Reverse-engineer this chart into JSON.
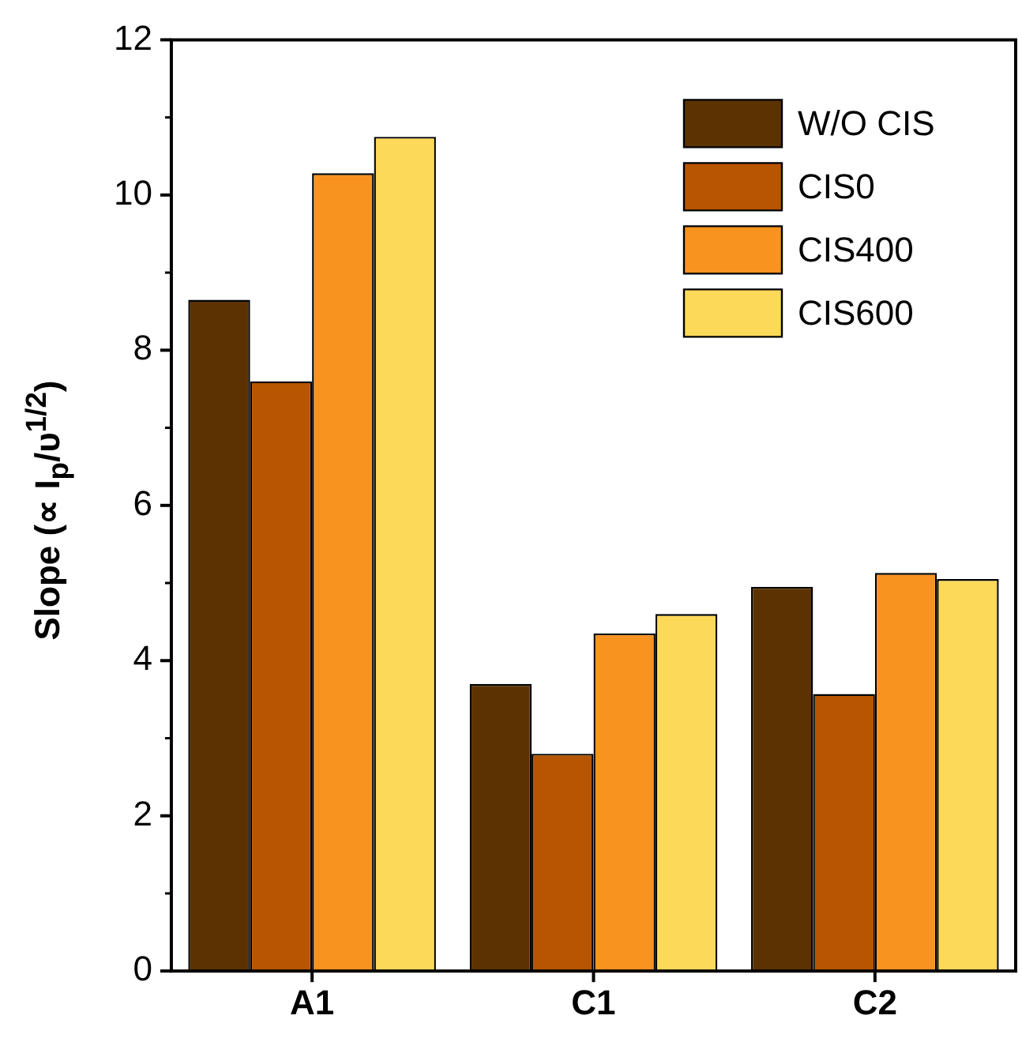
{
  "chart_data": {
    "type": "bar",
    "ylabel": "Slope (∝ I$_{p}$/υ$^{1/2}$)",
    "categories": [
      "A1",
      "C1",
      "C2"
    ],
    "series": [
      {
        "name": "W/O CIS",
        "color": "#5c3300",
        "values": [
          8.65,
          3.7,
          4.95
        ]
      },
      {
        "name": "CIS0",
        "color": "#b85500",
        "values": [
          7.6,
          2.8,
          3.57
        ]
      },
      {
        "name": "CIS400",
        "color": "#f7931e",
        "values": [
          10.28,
          4.35,
          5.13
        ]
      },
      {
        "name": "CIS600",
        "color": "#fdd95a",
        "values": [
          10.75,
          4.6,
          5.05
        ]
      }
    ],
    "ylim": [
      0,
      12
    ],
    "yticks": [
      0,
      2,
      4,
      6,
      8,
      10,
      12
    ],
    "grid": false,
    "legend": "top right"
  }
}
